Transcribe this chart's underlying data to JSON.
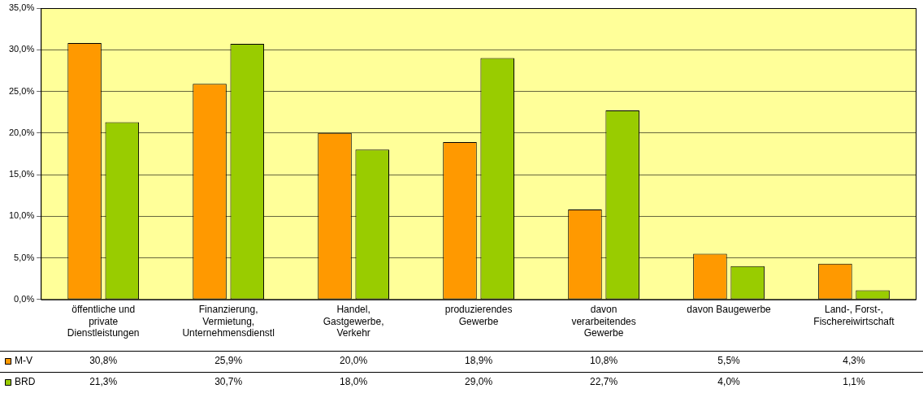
{
  "chart_data": {
    "type": "bar",
    "categories": [
      "öffentliche und private Dienstleistungen",
      "Finanzierung, Vermietung, Unternehmensdienstl",
      "Handel, Gastgewerbe, Verkehr",
      "produzierendes Gewerbe",
      "davon verarbeitendes Gewerbe",
      "davon Baugewerbe",
      "Land-, Forst-, Fischereiwirtschaft"
    ],
    "series": [
      {
        "name": "M-V",
        "color": "#ff9900",
        "values": [
          30.8,
          25.9,
          20.0,
          18.9,
          10.8,
          5.5,
          4.3
        ],
        "value_labels": [
          "30,8%",
          "25,9%",
          "20,0%",
          "18,9%",
          "10,8%",
          "5,5%",
          "4,3%"
        ]
      },
      {
        "name": "BRD",
        "color": "#99cc00",
        "values": [
          21.3,
          30.7,
          18.0,
          29.0,
          22.7,
          4.0,
          1.1
        ],
        "value_labels": [
          "21,3%",
          "30,7%",
          "18,0%",
          "29,0%",
          "22,7%",
          "4,0%",
          "1,1%"
        ]
      }
    ],
    "ylim": [
      0,
      35
    ],
    "yticks": [
      {
        "value": 0,
        "label": "0,0%"
      },
      {
        "value": 5,
        "label": "5,0%"
      },
      {
        "value": 10,
        "label": "10,0%"
      },
      {
        "value": 15,
        "label": "15,0%"
      },
      {
        "value": 20,
        "label": "20,0%"
      },
      {
        "value": 25,
        "label": "25,0%"
      },
      {
        "value": 30,
        "label": "30,0%"
      },
      {
        "value": 35,
        "label": "35,0%"
      }
    ],
    "grid": "y",
    "legend": "bottom"
  }
}
